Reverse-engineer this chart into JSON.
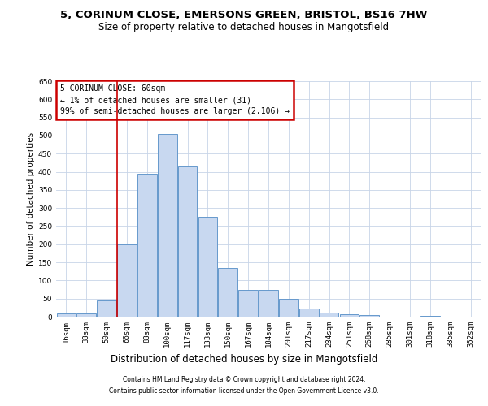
{
  "title1": "5, CORINUM CLOSE, EMERSONS GREEN, BRISTOL, BS16 7HW",
  "title2": "Size of property relative to detached houses in Mangotsfield",
  "xlabel": "Distribution of detached houses by size in Mangotsfield",
  "ylabel": "Number of detached properties",
  "categories": [
    "16sqm",
    "33sqm",
    "50sqm",
    "66sqm",
    "83sqm",
    "100sqm",
    "117sqm",
    "133sqm",
    "150sqm",
    "167sqm",
    "184sqm",
    "201sqm",
    "217sqm",
    "234sqm",
    "251sqm",
    "268sqm",
    "285sqm",
    "301sqm",
    "318sqm",
    "335sqm",
    "352sqm"
  ],
  "values": [
    8,
    10,
    45,
    200,
    395,
    505,
    415,
    275,
    135,
    75,
    75,
    50,
    22,
    12,
    7,
    4,
    1,
    0,
    2,
    0,
    1
  ],
  "bar_color": "#c8d8f0",
  "bar_edge_color": "#6699cc",
  "vline_color": "#cc0000",
  "vline_x": 2.5,
  "annotation_text": "5 CORINUM CLOSE: 60sqm\n← 1% of detached houses are smaller (31)\n99% of semi-detached houses are larger (2,106) →",
  "annotation_box_color": "#cc0000",
  "ylim": [
    0,
    650
  ],
  "yticks": [
    0,
    50,
    100,
    150,
    200,
    250,
    300,
    350,
    400,
    450,
    500,
    550,
    600,
    650
  ],
  "footer1": "Contains HM Land Registry data © Crown copyright and database right 2024.",
  "footer2": "Contains public sector information licensed under the Open Government Licence v3.0.",
  "bg_color": "#ffffff",
  "grid_color": "#c8d4e8",
  "title1_fontsize": 9.5,
  "title2_fontsize": 8.5,
  "xlabel_fontsize": 8.5,
  "ylabel_fontsize": 7.5,
  "tick_fontsize": 6.5,
  "annotation_fontsize": 7,
  "footer_fontsize": 5.5
}
